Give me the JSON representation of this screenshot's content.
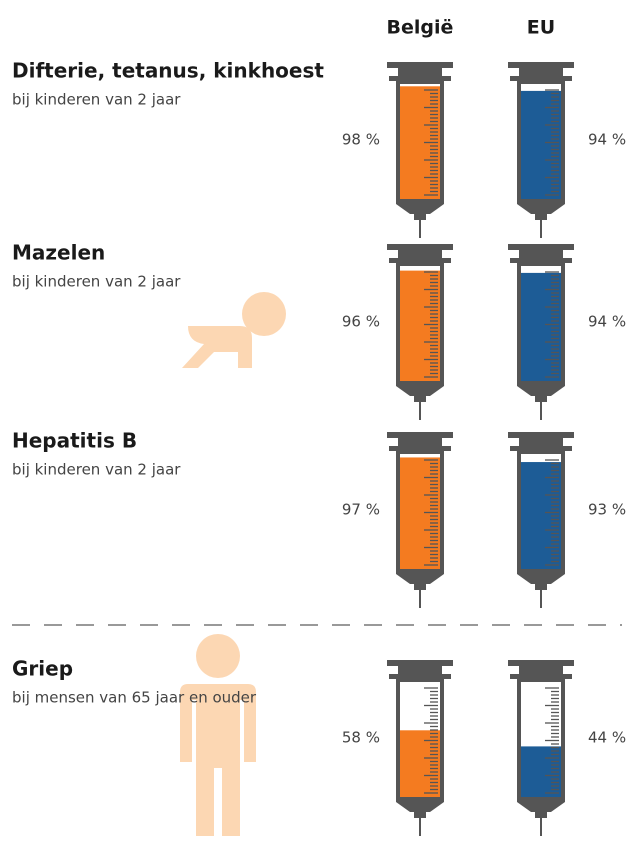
{
  "chart_data": {
    "type": "syringe",
    "categories": [
      "Difterie, tetanus, kinkhoest",
      "Mazelen",
      "Hepatitis B",
      "Griep"
    ],
    "subtitles": [
      "bij kinderen van 2 jaar",
      "bij kinderen van 2 jaar",
      "bij kinderen van 2 jaar",
      "bij mensen van 65 jaar en ouder"
    ],
    "ylim": [
      0,
      100
    ],
    "series": [
      {
        "name": "België",
        "color": "#f47b20",
        "values": [
          98,
          96,
          97,
          58
        ],
        "value_labels": [
          "98 %",
          "96 %",
          "97 %",
          "58 %"
        ]
      },
      {
        "name": "EU",
        "color": "#1d5c96",
        "values": [
          94,
          94,
          93,
          44
        ],
        "value_labels": [
          "94 %",
          "94 %",
          "93 %",
          "44 %"
        ]
      }
    ]
  }
}
